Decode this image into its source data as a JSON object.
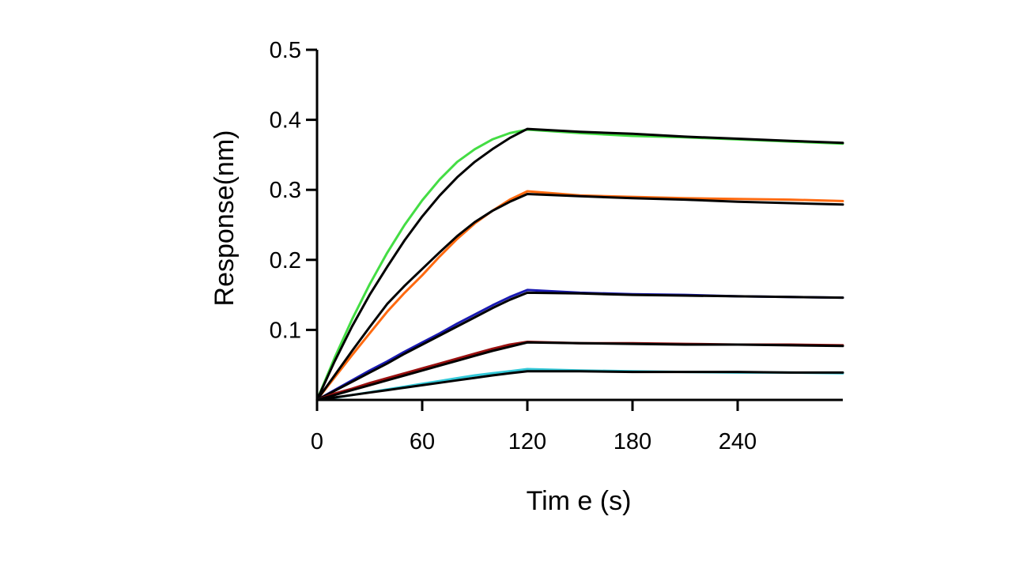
{
  "chart_data": {
    "type": "line",
    "title": "",
    "xlabel": "Tim e (s)",
    "ylabel": "Response(nm)",
    "xlim": [
      0,
      300
    ],
    "ylim": [
      0,
      0.5
    ],
    "x_ticks": [
      0,
      60,
      120,
      180,
      240
    ],
    "x_tick_labels": [
      "0",
      "60",
      "120",
      "180",
      "240"
    ],
    "y_ticks": [
      0.1,
      0.2,
      0.3,
      0.4,
      0.5
    ],
    "y_tick_labels": [
      "0.1",
      "0.2",
      "0.3",
      "0.4",
      "0.5"
    ],
    "grid": false,
    "legend": "none",
    "series": [
      {
        "color": "#44dd44",
        "x": [
          0,
          10,
          20,
          30,
          40,
          50,
          60,
          70,
          80,
          90,
          100,
          110,
          120,
          150,
          180,
          210,
          240,
          270,
          300
        ],
        "values": [
          0,
          0.06,
          0.115,
          0.165,
          0.21,
          0.25,
          0.285,
          0.315,
          0.34,
          0.358,
          0.372,
          0.381,
          0.386,
          0.381,
          0.377,
          0.375,
          0.372,
          0.369,
          0.366
        ]
      },
      {
        "color": "#000000",
        "x": [
          0,
          10,
          20,
          30,
          40,
          50,
          60,
          70,
          80,
          90,
          100,
          110,
          120,
          150,
          180,
          210,
          240,
          270,
          300
        ],
        "values": [
          0,
          0.055,
          0.105,
          0.15,
          0.19,
          0.228,
          0.262,
          0.292,
          0.318,
          0.34,
          0.358,
          0.374,
          0.387,
          0.383,
          0.38,
          0.376,
          0.373,
          0.37,
          0.367
        ]
      },
      {
        "color": "#ff6a10",
        "x": [
          0,
          10,
          20,
          30,
          40,
          50,
          60,
          70,
          80,
          90,
          100,
          110,
          120,
          150,
          180,
          210,
          240,
          270,
          300
        ],
        "values": [
          0,
          0.032,
          0.064,
          0.095,
          0.126,
          0.153,
          0.178,
          0.205,
          0.23,
          0.252,
          0.27,
          0.286,
          0.298,
          0.292,
          0.29,
          0.288,
          0.287,
          0.286,
          0.284
        ]
      },
      {
        "color": "#000000",
        "x": [
          0,
          10,
          20,
          30,
          40,
          50,
          60,
          70,
          80,
          90,
          100,
          110,
          120,
          150,
          180,
          210,
          240,
          270,
          300
        ],
        "values": [
          0,
          0.035,
          0.07,
          0.104,
          0.137,
          0.163,
          0.187,
          0.211,
          0.234,
          0.254,
          0.27,
          0.283,
          0.294,
          0.291,
          0.288,
          0.286,
          0.283,
          0.281,
          0.279
        ]
      },
      {
        "color": "#1a1ab3",
        "x": [
          0,
          10,
          20,
          30,
          40,
          50,
          60,
          70,
          80,
          90,
          100,
          110,
          120,
          150,
          180,
          210,
          240,
          270,
          300
        ],
        "values": [
          0,
          0.014,
          0.028,
          0.042,
          0.055,
          0.069,
          0.082,
          0.095,
          0.109,
          0.122,
          0.135,
          0.147,
          0.157,
          0.153,
          0.151,
          0.15,
          0.148,
          0.147,
          0.146
        ]
      },
      {
        "color": "#000000",
        "x": [
          0,
          10,
          20,
          30,
          40,
          50,
          60,
          70,
          80,
          90,
          100,
          110,
          120,
          150,
          180,
          210,
          240,
          270,
          300
        ],
        "values": [
          0,
          0.013,
          0.026,
          0.039,
          0.052,
          0.066,
          0.079,
          0.092,
          0.105,
          0.118,
          0.131,
          0.143,
          0.153,
          0.152,
          0.15,
          0.149,
          0.148,
          0.147,
          0.146
        ]
      },
      {
        "color": "#9a1010",
        "x": [
          0,
          10,
          20,
          30,
          40,
          50,
          60,
          70,
          80,
          90,
          100,
          110,
          120,
          150,
          180,
          210,
          240,
          270,
          300
        ],
        "values": [
          0,
          0.009,
          0.016,
          0.024,
          0.031,
          0.038,
          0.045,
          0.052,
          0.059,
          0.066,
          0.073,
          0.079,
          0.083,
          0.081,
          0.081,
          0.08,
          0.079,
          0.079,
          0.078
        ]
      },
      {
        "color": "#000000",
        "x": [
          0,
          10,
          20,
          30,
          40,
          50,
          60,
          70,
          80,
          90,
          100,
          110,
          120,
          150,
          180,
          210,
          240,
          270,
          300
        ],
        "values": [
          0,
          0.007,
          0.014,
          0.021,
          0.028,
          0.035,
          0.042,
          0.049,
          0.056,
          0.063,
          0.07,
          0.076,
          0.082,
          0.081,
          0.08,
          0.079,
          0.079,
          0.078,
          0.077
        ]
      },
      {
        "color": "#33c8d8",
        "x": [
          0,
          10,
          20,
          30,
          40,
          50,
          60,
          70,
          80,
          90,
          100,
          110,
          120,
          150,
          180,
          210,
          240,
          270,
          300
        ],
        "values": [
          0,
          0.003,
          0.007,
          0.011,
          0.015,
          0.019,
          0.023,
          0.027,
          0.031,
          0.035,
          0.038,
          0.041,
          0.044,
          0.042,
          0.041,
          0.04,
          0.039,
          0.039,
          0.038
        ]
      },
      {
        "color": "#000000",
        "x": [
          0,
          10,
          20,
          30,
          40,
          50,
          60,
          70,
          80,
          90,
          100,
          110,
          120,
          150,
          180,
          210,
          240,
          270,
          300
        ],
        "values": [
          0,
          0.0035,
          0.007,
          0.0105,
          0.014,
          0.0175,
          0.021,
          0.0245,
          0.028,
          0.0315,
          0.035,
          0.038,
          0.041,
          0.041,
          0.04,
          0.04,
          0.04,
          0.039,
          0.039
        ]
      }
    ]
  }
}
